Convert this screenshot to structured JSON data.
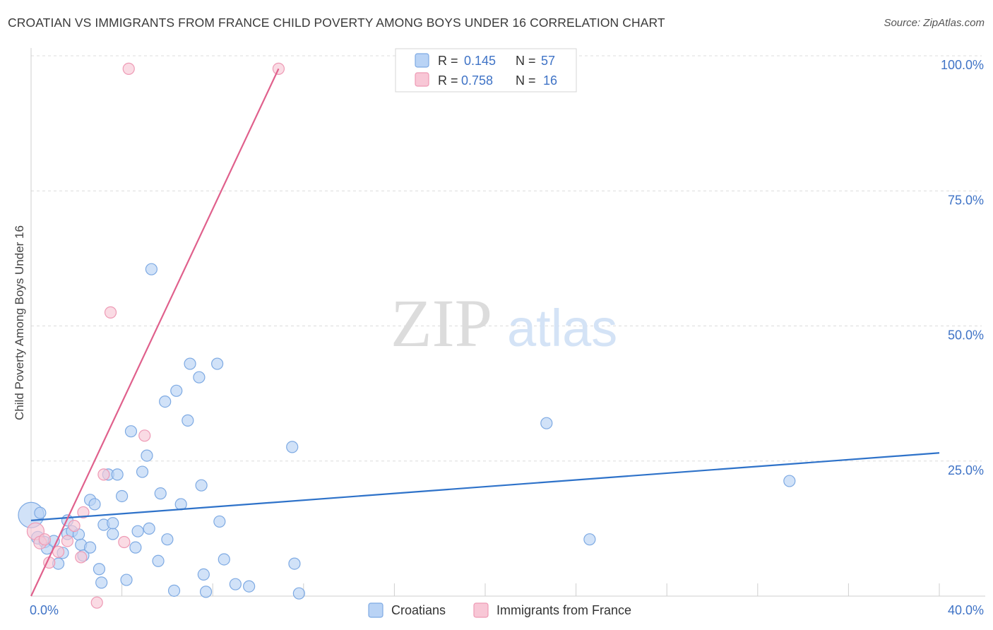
{
  "title": "CROATIAN VS IMMIGRANTS FROM FRANCE CHILD POVERTY AMONG BOYS UNDER 16 CORRELATION CHART",
  "source": "Source: ZipAtlas.com",
  "watermark": {
    "zip": "ZIP",
    "atlas": "atlas"
  },
  "colors": {
    "croatians_fill": "#b9d3f5",
    "croatians_stroke": "#7eaae3",
    "croatians_line": "#2e72c9",
    "france_fill": "#f8c7d6",
    "france_stroke": "#ee9ab5",
    "france_line": "#e0608c",
    "axis_text": "#3f73c6",
    "grid": "#dcdcdc"
  },
  "legend_top": [
    {
      "series": "Croatians",
      "r_label": "R =",
      "r_value": "0.145",
      "n_label": "N =",
      "n_value": "57"
    },
    {
      "series": "Immigrants from France",
      "r_label": "R =",
      "r_value": "0.758",
      "n_label": "N =",
      "n_value": "16"
    }
  ],
  "chart_data": {
    "type": "scatter",
    "xlabel": "",
    "ylabel": "Child Poverty Among Boys Under 16",
    "xlim": [
      0,
      40
    ],
    "ylim": [
      0,
      100
    ],
    "x_tick_labels": [
      "0.0%",
      "40.0%"
    ],
    "y_tick_labels": [
      "25.0%",
      "50.0%",
      "75.0%",
      "100.0%"
    ],
    "y_ticks": [
      25,
      50,
      75,
      100
    ],
    "legend": [
      "Croatians",
      "Immigrants from France"
    ],
    "series": [
      {
        "name": "Croatians",
        "points": [
          [
            0.0,
            15.0,
            18
          ],
          [
            0.3,
            10.8,
            9
          ],
          [
            0.6,
            10.0,
            8
          ],
          [
            0.7,
            8.8,
            8
          ],
          [
            1.0,
            10.2,
            8
          ],
          [
            1.4,
            8.0,
            8
          ],
          [
            1.2,
            6.0,
            8
          ],
          [
            1.6,
            14.0,
            8
          ],
          [
            1.6,
            11.5,
            8
          ],
          [
            1.8,
            12.0,
            8
          ],
          [
            2.1,
            11.4,
            8
          ],
          [
            2.2,
            9.5,
            8
          ],
          [
            2.3,
            7.5,
            8
          ],
          [
            2.6,
            9.0,
            8
          ],
          [
            2.6,
            17.8,
            8
          ],
          [
            2.8,
            17.0,
            8
          ],
          [
            3.0,
            5.0,
            8
          ],
          [
            3.1,
            2.5,
            8
          ],
          [
            3.2,
            13.2,
            8
          ],
          [
            3.4,
            22.5,
            8
          ],
          [
            3.6,
            11.5,
            8
          ],
          [
            3.6,
            13.5,
            8
          ],
          [
            3.8,
            22.5,
            8
          ],
          [
            4.0,
            18.5,
            8
          ],
          [
            4.2,
            3.0,
            8
          ],
          [
            4.4,
            30.5,
            8
          ],
          [
            4.6,
            9.0,
            8
          ],
          [
            4.7,
            12.0,
            8
          ],
          [
            4.9,
            23.0,
            8
          ],
          [
            5.1,
            26.0,
            8
          ],
          [
            5.2,
            12.5,
            8
          ],
          [
            5.3,
            60.5,
            8
          ],
          [
            5.6,
            6.5,
            8
          ],
          [
            5.7,
            19.0,
            8
          ],
          [
            5.9,
            36.0,
            8
          ],
          [
            6.0,
            10.5,
            8
          ],
          [
            6.3,
            1.0,
            8
          ],
          [
            6.4,
            38.0,
            8
          ],
          [
            6.6,
            17.0,
            8
          ],
          [
            6.9,
            32.5,
            8
          ],
          [
            7.0,
            43.0,
            8
          ],
          [
            7.4,
            40.5,
            8
          ],
          [
            7.5,
            20.5,
            8
          ],
          [
            7.6,
            4.0,
            8
          ],
          [
            7.7,
            0.8,
            8
          ],
          [
            8.2,
            43.0,
            8
          ],
          [
            8.3,
            13.8,
            8
          ],
          [
            8.5,
            6.8,
            8
          ],
          [
            9.0,
            2.2,
            8
          ],
          [
            9.6,
            1.8,
            8
          ],
          [
            11.5,
            27.6,
            8
          ],
          [
            11.6,
            6.0,
            8
          ],
          [
            11.8,
            0.5,
            8
          ],
          [
            22.7,
            32.0,
            8
          ],
          [
            24.6,
            10.5,
            8
          ],
          [
            33.4,
            21.3,
            8
          ],
          [
            0.4,
            15.4,
            8
          ]
        ],
        "trend": [
          [
            0.0,
            14.0
          ],
          [
            40.0,
            26.5
          ]
        ]
      },
      {
        "name": "Immigrants from France",
        "points": [
          [
            0.2,
            12.0,
            12
          ],
          [
            0.4,
            9.9,
            9
          ],
          [
            0.8,
            6.2,
            8
          ],
          [
            1.2,
            8.2,
            8
          ],
          [
            1.6,
            10.2,
            8
          ],
          [
            2.2,
            7.2,
            8
          ],
          [
            2.3,
            15.5,
            8
          ],
          [
            2.9,
            -1.2,
            8
          ],
          [
            3.2,
            22.5,
            8
          ],
          [
            3.5,
            52.5,
            8
          ],
          [
            4.1,
            10.0,
            8
          ],
          [
            4.3,
            97.6,
            8
          ],
          [
            5.0,
            29.7,
            8
          ],
          [
            10.9,
            97.6,
            8
          ],
          [
            0.6,
            10.5,
            8
          ],
          [
            1.9,
            13.0,
            8
          ]
        ],
        "trend": [
          [
            0.0,
            0.0
          ],
          [
            10.9,
            97.6
          ]
        ]
      }
    ]
  }
}
